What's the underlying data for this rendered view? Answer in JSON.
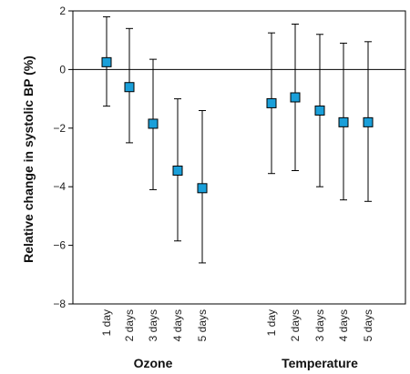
{
  "chart_data": {
    "type": "scatter",
    "ylabel": "Relative change in systolic BP (%)",
    "ylim": [
      -8,
      2
    ],
    "yticks": [
      2,
      0,
      -2,
      -4,
      -6,
      -8
    ],
    "grid": false,
    "zero_line": true,
    "marker_color": "#1a9fd9",
    "groups": [
      {
        "name": "Ozone",
        "categories": [
          "1 day",
          "2 days",
          "3 days",
          "4 days",
          "5 days"
        ],
        "values": [
          0.25,
          -0.6,
          -1.85,
          -3.45,
          -4.05
        ],
        "lower": [
          -1.25,
          -2.5,
          -4.1,
          -5.85,
          -6.6
        ],
        "upper": [
          1.8,
          1.4,
          0.35,
          -1.0,
          -1.4
        ]
      },
      {
        "name": "Temperature",
        "categories": [
          "1 day",
          "2 days",
          "3 days",
          "4 days",
          "5 days"
        ],
        "values": [
          -1.15,
          -0.95,
          -1.4,
          -1.8,
          -1.8
        ],
        "lower": [
          -3.55,
          -3.45,
          -4.0,
          -4.45,
          -4.5
        ],
        "upper": [
          1.25,
          1.55,
          1.2,
          0.9,
          0.95
        ]
      }
    ]
  }
}
